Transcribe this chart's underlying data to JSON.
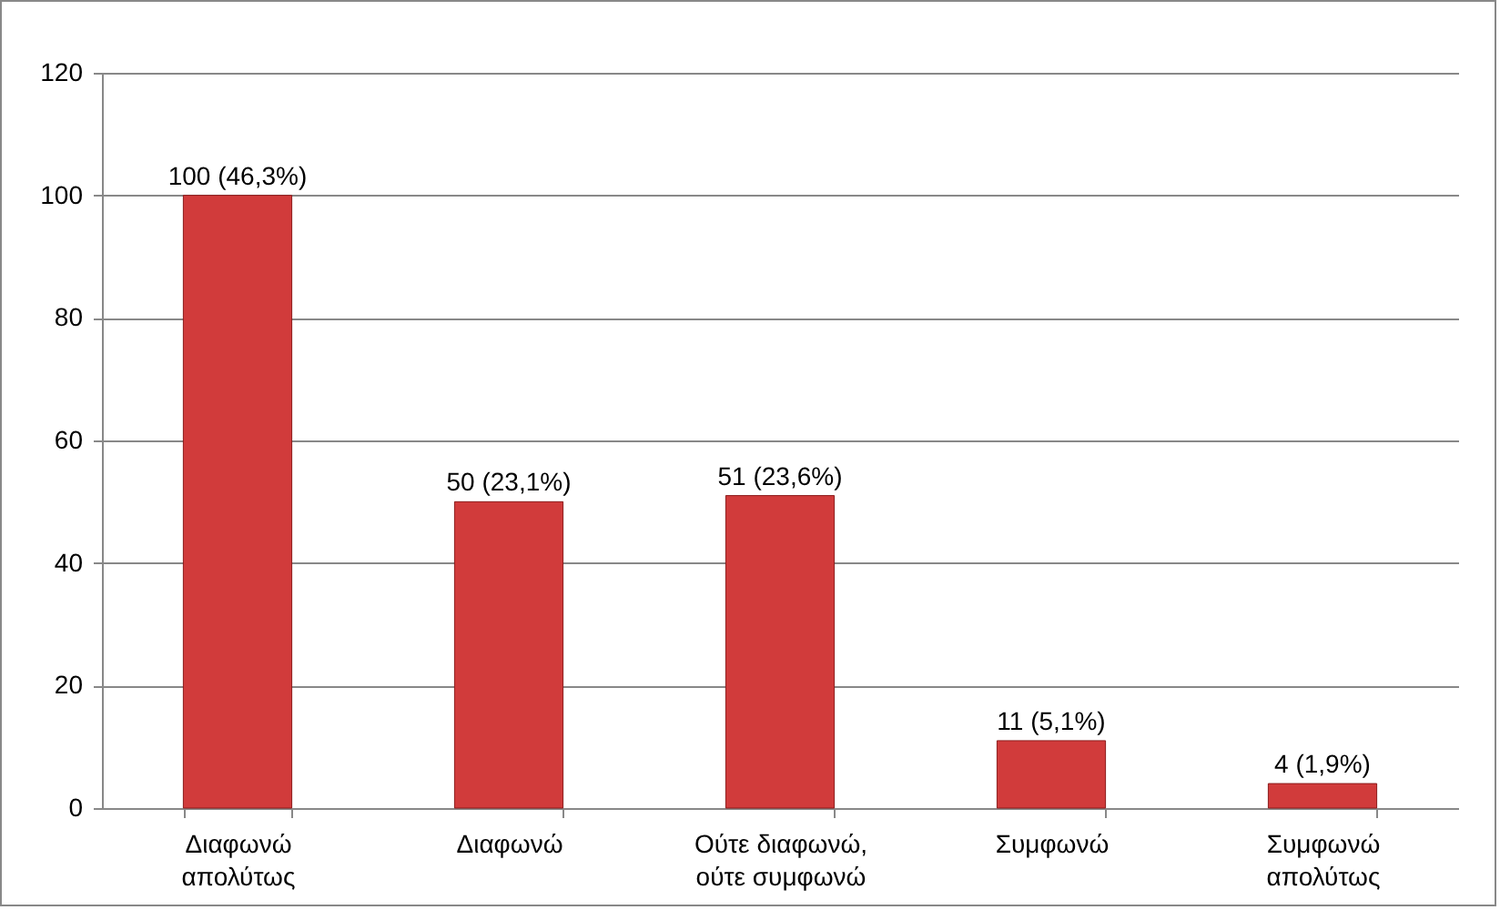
{
  "chart_data": {
    "type": "bar",
    "categories": [
      "Διαφωνώ απολύτως",
      "Διαφωνώ",
      "Ούτε διαφωνώ, ούτε συμφωνώ",
      "Συμφωνώ",
      "Συμφωνώ απολύτως"
    ],
    "values": [
      100,
      50,
      51,
      11,
      4
    ],
    "value_labels": [
      "100 (46,3%)",
      "50 (23,1%)",
      "51 (23,6%)",
      "11 (5,1%)",
      "4 (1,9%)"
    ],
    "color": "#d13b3b",
    "ylim": [
      0,
      120
    ],
    "yticks": [
      0,
      20,
      40,
      60,
      80,
      100,
      120
    ],
    "grid": "y"
  }
}
